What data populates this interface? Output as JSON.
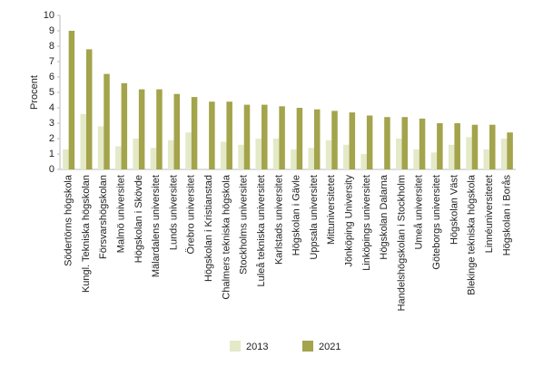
{
  "chart_data": {
    "type": "bar",
    "ylabel": "Procent",
    "categories": [
      "Södertörns högskola",
      "Kungl. Tekniska högskolan",
      "Försvarshögskolan",
      "Malmö universitet",
      "Högskolan i Skövde",
      "Mälardalens universitet",
      "Lunds universitet",
      "Örebro universitet",
      "Högskolan i Kristianstad",
      "Chalmers tekniska högskola",
      "Stockholms universitet",
      "Luleå tekniska universitet",
      "Karlstads universitet",
      "Högskolan i Gävle",
      "Uppsala universitet",
      "Mittuniversitetet",
      "Jönköping University",
      "Linköpings universitet",
      "Högskolan Dalarna",
      "Handelshögskolan i Stockholm",
      "Umeå universitet",
      "Göteborgs universitet",
      "Högskolan Väst",
      "Blekinge tekniska högskola",
      "Linnéuniversitetet",
      "Högskolan i Borås"
    ],
    "series": [
      {
        "name": "2013",
        "color": "#e4e9c8",
        "values": [
          1.3,
          3.6,
          2.8,
          1.5,
          2.0,
          1.4,
          1.9,
          2.4,
          null,
          1.8,
          1.6,
          2.0,
          2.0,
          1.3,
          1.4,
          1.9,
          1.6,
          1.0,
          null,
          2.0,
          1.3,
          1.1,
          1.6,
          2.1,
          1.3,
          2.0
        ]
      },
      {
        "name": "2021",
        "color": "#a3a44b",
        "values": [
          9.0,
          7.8,
          6.2,
          5.6,
          5.2,
          5.2,
          4.9,
          4.7,
          4.4,
          4.4,
          4.2,
          4.2,
          4.1,
          4.0,
          3.9,
          3.8,
          3.7,
          3.5,
          3.4,
          3.4,
          3.3,
          3.0,
          3.0,
          2.9,
          2.9,
          2.4
        ]
      }
    ],
    "ylim": [
      0,
      10
    ],
    "yticks": [
      0,
      1,
      2,
      3,
      4,
      5,
      6,
      7,
      8,
      9,
      10
    ]
  }
}
